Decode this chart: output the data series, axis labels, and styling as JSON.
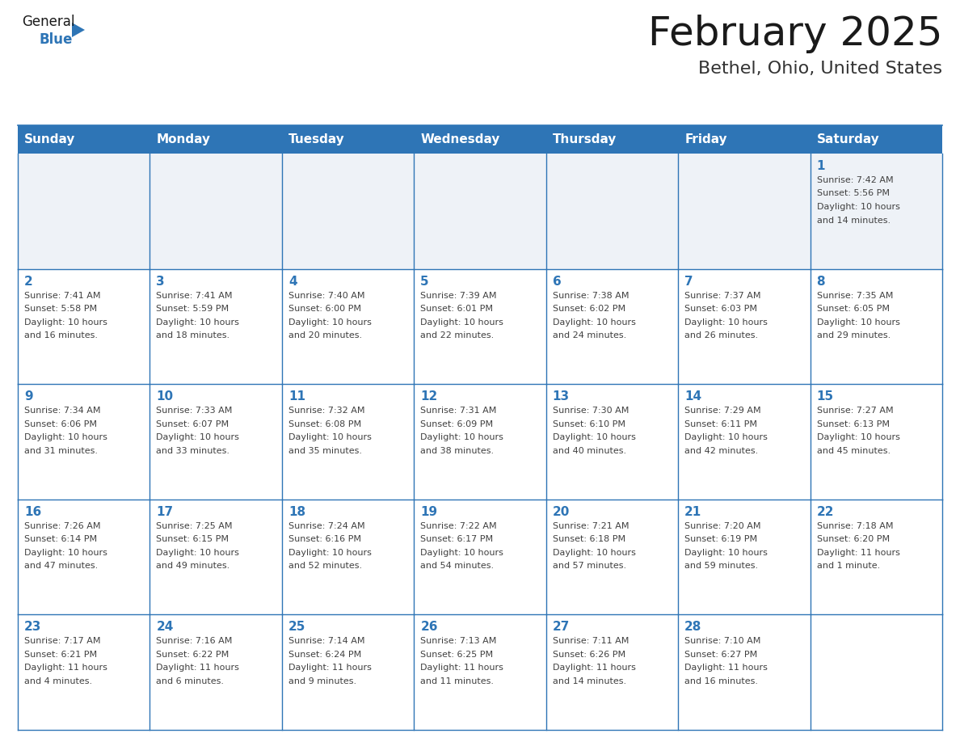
{
  "title": "February 2025",
  "subtitle": "Bethel, Ohio, United States",
  "header_bg": "#2E75B6",
  "header_text_color": "#FFFFFF",
  "cell_border_color": "#2E75B6",
  "day_number_color": "#2E75B6",
  "info_text_color": "#404040",
  "bg_color": "#FFFFFF",
  "row1_bg": "#EEF2F7",
  "days_of_week": [
    "Sunday",
    "Monday",
    "Tuesday",
    "Wednesday",
    "Thursday",
    "Friday",
    "Saturday"
  ],
  "calendar": [
    [
      null,
      null,
      null,
      null,
      null,
      null,
      {
        "day": 1,
        "sunrise": "7:42 AM",
        "sunset": "5:56 PM",
        "daylight_line1": "Daylight: 10 hours",
        "daylight_line2": "and 14 minutes."
      }
    ],
    [
      {
        "day": 2,
        "sunrise": "7:41 AM",
        "sunset": "5:58 PM",
        "daylight_line1": "Daylight: 10 hours",
        "daylight_line2": "and 16 minutes."
      },
      {
        "day": 3,
        "sunrise": "7:41 AM",
        "sunset": "5:59 PM",
        "daylight_line1": "Daylight: 10 hours",
        "daylight_line2": "and 18 minutes."
      },
      {
        "day": 4,
        "sunrise": "7:40 AM",
        "sunset": "6:00 PM",
        "daylight_line1": "Daylight: 10 hours",
        "daylight_line2": "and 20 minutes."
      },
      {
        "day": 5,
        "sunrise": "7:39 AM",
        "sunset": "6:01 PM",
        "daylight_line1": "Daylight: 10 hours",
        "daylight_line2": "and 22 minutes."
      },
      {
        "day": 6,
        "sunrise": "7:38 AM",
        "sunset": "6:02 PM",
        "daylight_line1": "Daylight: 10 hours",
        "daylight_line2": "and 24 minutes."
      },
      {
        "day": 7,
        "sunrise": "7:37 AM",
        "sunset": "6:03 PM",
        "daylight_line1": "Daylight: 10 hours",
        "daylight_line2": "and 26 minutes."
      },
      {
        "day": 8,
        "sunrise": "7:35 AM",
        "sunset": "6:05 PM",
        "daylight_line1": "Daylight: 10 hours",
        "daylight_line2": "and 29 minutes."
      }
    ],
    [
      {
        "day": 9,
        "sunrise": "7:34 AM",
        "sunset": "6:06 PM",
        "daylight_line1": "Daylight: 10 hours",
        "daylight_line2": "and 31 minutes."
      },
      {
        "day": 10,
        "sunrise": "7:33 AM",
        "sunset": "6:07 PM",
        "daylight_line1": "Daylight: 10 hours",
        "daylight_line2": "and 33 minutes."
      },
      {
        "day": 11,
        "sunrise": "7:32 AM",
        "sunset": "6:08 PM",
        "daylight_line1": "Daylight: 10 hours",
        "daylight_line2": "and 35 minutes."
      },
      {
        "day": 12,
        "sunrise": "7:31 AM",
        "sunset": "6:09 PM",
        "daylight_line1": "Daylight: 10 hours",
        "daylight_line2": "and 38 minutes."
      },
      {
        "day": 13,
        "sunrise": "7:30 AM",
        "sunset": "6:10 PM",
        "daylight_line1": "Daylight: 10 hours",
        "daylight_line2": "and 40 minutes."
      },
      {
        "day": 14,
        "sunrise": "7:29 AM",
        "sunset": "6:11 PM",
        "daylight_line1": "Daylight: 10 hours",
        "daylight_line2": "and 42 minutes."
      },
      {
        "day": 15,
        "sunrise": "7:27 AM",
        "sunset": "6:13 PM",
        "daylight_line1": "Daylight: 10 hours",
        "daylight_line2": "and 45 minutes."
      }
    ],
    [
      {
        "day": 16,
        "sunrise": "7:26 AM",
        "sunset": "6:14 PM",
        "daylight_line1": "Daylight: 10 hours",
        "daylight_line2": "and 47 minutes."
      },
      {
        "day": 17,
        "sunrise": "7:25 AM",
        "sunset": "6:15 PM",
        "daylight_line1": "Daylight: 10 hours",
        "daylight_line2": "and 49 minutes."
      },
      {
        "day": 18,
        "sunrise": "7:24 AM",
        "sunset": "6:16 PM",
        "daylight_line1": "Daylight: 10 hours",
        "daylight_line2": "and 52 minutes."
      },
      {
        "day": 19,
        "sunrise": "7:22 AM",
        "sunset": "6:17 PM",
        "daylight_line1": "Daylight: 10 hours",
        "daylight_line2": "and 54 minutes."
      },
      {
        "day": 20,
        "sunrise": "7:21 AM",
        "sunset": "6:18 PM",
        "daylight_line1": "Daylight: 10 hours",
        "daylight_line2": "and 57 minutes."
      },
      {
        "day": 21,
        "sunrise": "7:20 AM",
        "sunset": "6:19 PM",
        "daylight_line1": "Daylight: 10 hours",
        "daylight_line2": "and 59 minutes."
      },
      {
        "day": 22,
        "sunrise": "7:18 AM",
        "sunset": "6:20 PM",
        "daylight_line1": "Daylight: 11 hours",
        "daylight_line2": "and 1 minute."
      }
    ],
    [
      {
        "day": 23,
        "sunrise": "7:17 AM",
        "sunset": "6:21 PM",
        "daylight_line1": "Daylight: 11 hours",
        "daylight_line2": "and 4 minutes."
      },
      {
        "day": 24,
        "sunrise": "7:16 AM",
        "sunset": "6:22 PM",
        "daylight_line1": "Daylight: 11 hours",
        "daylight_line2": "and 6 minutes."
      },
      {
        "day": 25,
        "sunrise": "7:14 AM",
        "sunset": "6:24 PM",
        "daylight_line1": "Daylight: 11 hours",
        "daylight_line2": "and 9 minutes."
      },
      {
        "day": 26,
        "sunrise": "7:13 AM",
        "sunset": "6:25 PM",
        "daylight_line1": "Daylight: 11 hours",
        "daylight_line2": "and 11 minutes."
      },
      {
        "day": 27,
        "sunrise": "7:11 AM",
        "sunset": "6:26 PM",
        "daylight_line1": "Daylight: 11 hours",
        "daylight_line2": "and 14 minutes."
      },
      {
        "day": 28,
        "sunrise": "7:10 AM",
        "sunset": "6:27 PM",
        "daylight_line1": "Daylight: 11 hours",
        "daylight_line2": "and 16 minutes."
      },
      null
    ]
  ],
  "logo_general_color": "#1a1a1a",
  "logo_blue_color": "#2E75B6",
  "logo_triangle_color": "#2E75B6",
  "title_fontsize": 36,
  "subtitle_fontsize": 16,
  "header_fontsize": 11,
  "day_num_fontsize": 11,
  "cell_text_fontsize": 8
}
